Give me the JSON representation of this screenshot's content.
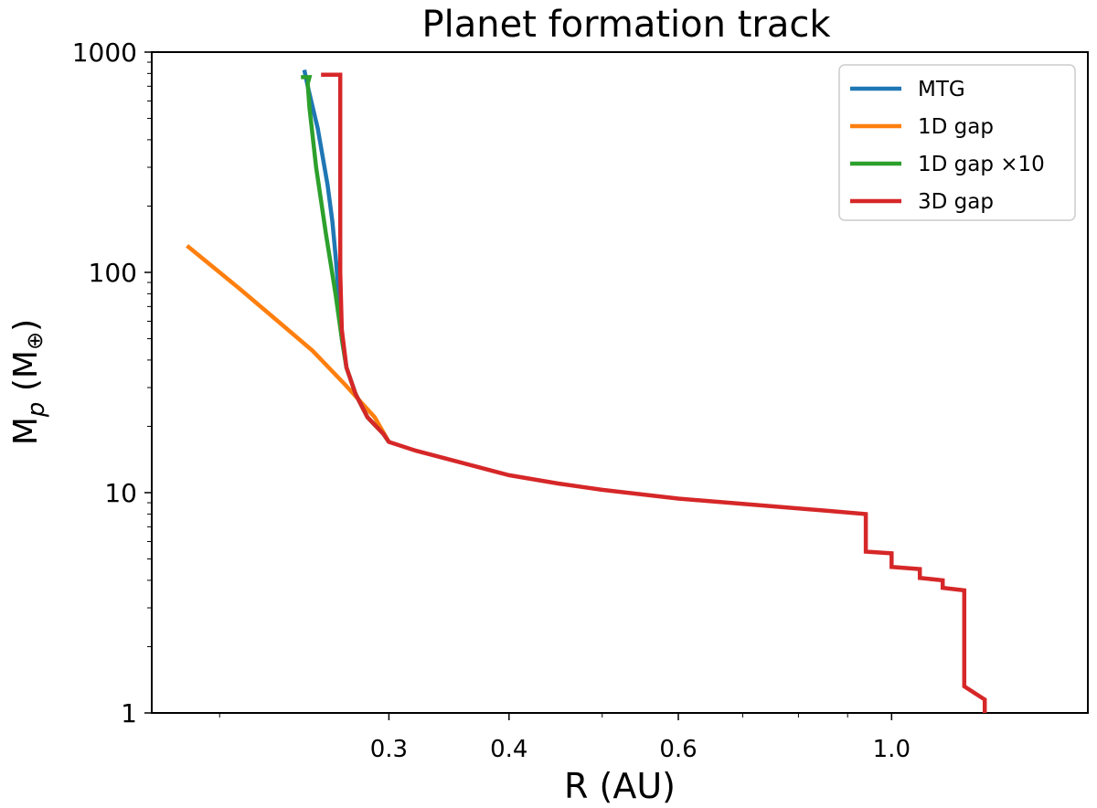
{
  "chart_data": {
    "type": "line",
    "title": "Planet formation track",
    "xlabel": "R (AU)",
    "ylabel_main": "M",
    "ylabel_sub": "p",
    "ylabel_unit": " (M",
    "ylabel_symbol": "⊕",
    "ylabel_close": ")",
    "xscale": "log",
    "yscale": "log",
    "xlim": [
      0.17,
      1.6
    ],
    "ylim": [
      1,
      1000
    ],
    "xticks": [
      {
        "value": 0.3,
        "label": "0.3"
      },
      {
        "value": 0.4,
        "label": "0.4"
      },
      {
        "value": 0.6,
        "label": "0.6"
      },
      {
        "value": 1.0,
        "label": "1.0"
      }
    ],
    "yticks": [
      {
        "value": 1,
        "label": "1"
      },
      {
        "value": 10,
        "label": "10"
      },
      {
        "value": 100,
        "label": "100"
      },
      {
        "value": 1000,
        "label": "1000"
      }
    ],
    "grid": false,
    "legend_position": "top-right",
    "series": [
      {
        "name": "MTG",
        "color": "#1f77b4",
        "points": [
          [
            0.3,
            17
          ],
          [
            0.296,
            18.5
          ],
          [
            0.285,
            22
          ],
          [
            0.277,
            28
          ],
          [
            0.271,
            37
          ],
          [
            0.268,
            50
          ],
          [
            0.266,
            80
          ],
          [
            0.264,
            120
          ],
          [
            0.262,
            170
          ],
          [
            0.259,
            250
          ],
          [
            0.253,
            450
          ],
          [
            0.247,
            700
          ],
          [
            0.245,
            830
          ]
        ]
      },
      {
        "name": "1D gap",
        "color": "#ff7f0e",
        "points": [
          [
            0.185,
            132
          ],
          [
            0.21,
            84
          ],
          [
            0.23,
            60
          ],
          [
            0.25,
            44
          ],
          [
            0.27,
            31
          ],
          [
            0.29,
            22
          ],
          [
            0.3,
            17
          ]
        ]
      },
      {
        "name": "1D gap ×10",
        "color": "#2ca02c",
        "points": [
          [
            0.3,
            17
          ],
          [
            0.296,
            18.5
          ],
          [
            0.285,
            22
          ],
          [
            0.277,
            28
          ],
          [
            0.271,
            37
          ],
          [
            0.268,
            50
          ],
          [
            0.264,
            80
          ],
          [
            0.258,
            150
          ],
          [
            0.252,
            300
          ],
          [
            0.248,
            560
          ],
          [
            0.247,
            720
          ],
          [
            0.248,
            770
          ],
          [
            0.243,
            770
          ]
        ]
      },
      {
        "name": "3D gap",
        "color": "#d62728",
        "points": [
          [
            1.25,
            1
          ],
          [
            1.25,
            1.15
          ],
          [
            1.19,
            1.32
          ],
          [
            1.19,
            3.6
          ],
          [
            1.13,
            3.7
          ],
          [
            1.13,
            4.0
          ],
          [
            1.07,
            4.1
          ],
          [
            1.07,
            4.5
          ],
          [
            1.0,
            4.6
          ],
          [
            1.0,
            5.3
          ],
          [
            0.94,
            5.4
          ],
          [
            0.94,
            8.0
          ],
          [
            0.85,
            8.3
          ],
          [
            0.7,
            8.9
          ],
          [
            0.6,
            9.4
          ],
          [
            0.5,
            10.3
          ],
          [
            0.45,
            11.0
          ],
          [
            0.4,
            12.0
          ],
          [
            0.35,
            14.0
          ],
          [
            0.32,
            15.5
          ],
          [
            0.3,
            17
          ],
          [
            0.296,
            18.5
          ],
          [
            0.285,
            22
          ],
          [
            0.277,
            28
          ],
          [
            0.271,
            37
          ],
          [
            0.268,
            55
          ],
          [
            0.267,
            100
          ],
          [
            0.267,
            200
          ],
          [
            0.267,
            400
          ],
          [
            0.267,
            790
          ],
          [
            0.255,
            790
          ]
        ]
      }
    ]
  }
}
